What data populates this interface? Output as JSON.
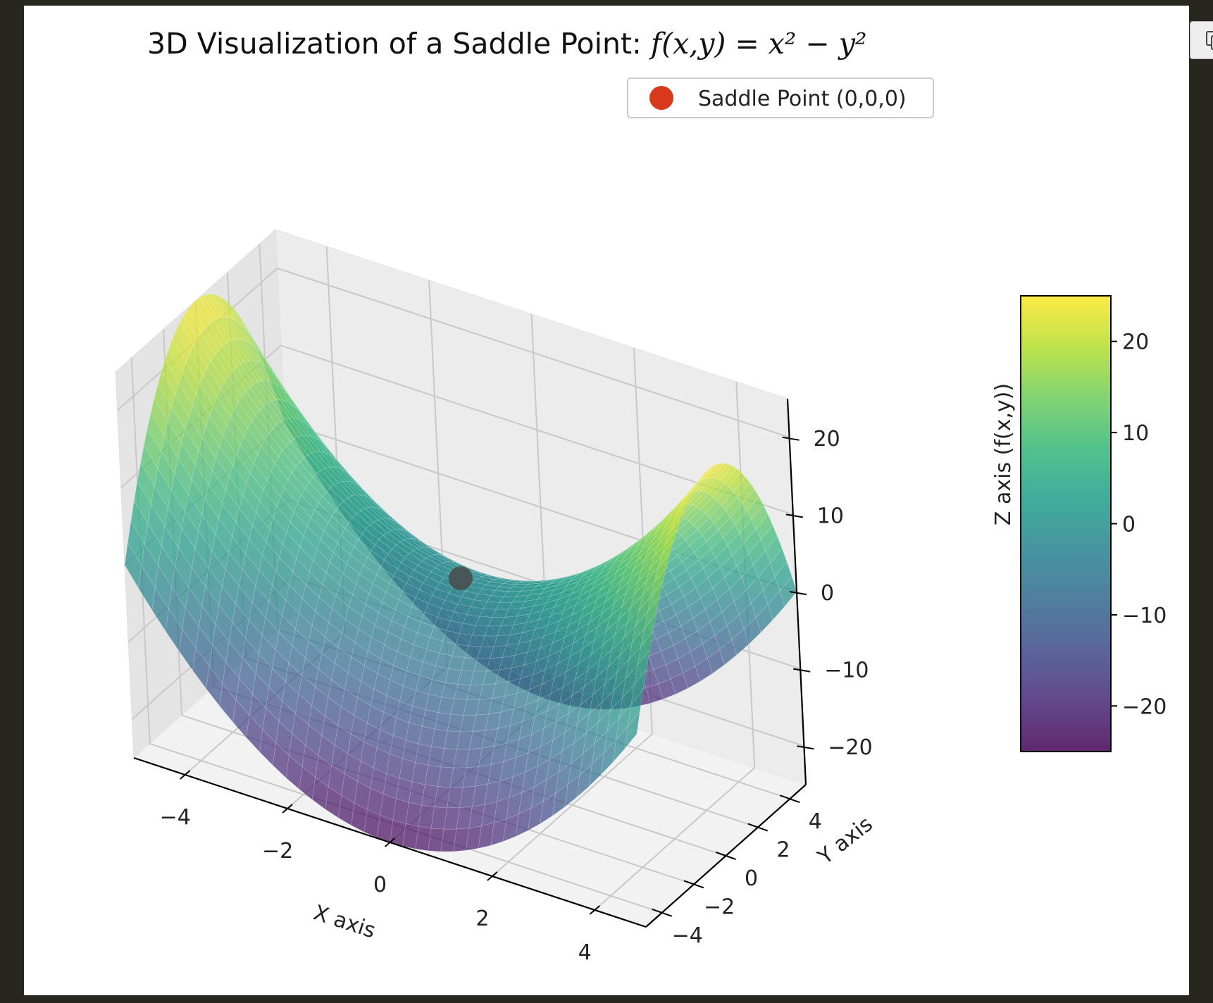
{
  "chart_data": {
    "type": "surface3d",
    "title": "3D Visualization of a Saddle Point: ",
    "title_math": "f(x,y) = x² − y²",
    "function": "x^2 - y^2",
    "xlabel": "X axis",
    "ylabel": "Y axis",
    "zlabel": "Z axis (f(x,y))",
    "xlim": [
      -5,
      5
    ],
    "ylim": [
      -5,
      5
    ],
    "zlim": [
      -25,
      25
    ],
    "x_ticks": [
      -4,
      -2,
      0,
      2,
      4
    ],
    "y_ticks": [
      -4,
      -2,
      0,
      2,
      4
    ],
    "z_ticks": [
      -20,
      -10,
      0,
      10,
      20
    ],
    "x_tick_labels": [
      "−4",
      "−2",
      "0",
      "2",
      "4"
    ],
    "y_tick_labels": [
      "−4",
      "−2",
      "0",
      "2",
      "4"
    ],
    "z_tick_labels": [
      "−20",
      "−10",
      "0",
      "10",
      "20"
    ],
    "colormap": "viridis",
    "surface_alpha": 0.7,
    "grid": true,
    "colorbar": {
      "range": [
        -25,
        25
      ],
      "ticks": [
        -20,
        -10,
        0,
        10,
        20
      ],
      "tick_labels": [
        "−20",
        "−10",
        "0",
        "10",
        "20"
      ]
    },
    "point": {
      "label": "Saddle Point (0,0,0)",
      "x": 0,
      "y": 0,
      "z": 0,
      "color": "#d8391a"
    },
    "legend": {
      "placement": "upper-right",
      "label": "Saddle Point (0,0,0)",
      "marker_color": "#d8391a"
    }
  },
  "ui": {
    "copy_icon": "copy-icon"
  }
}
